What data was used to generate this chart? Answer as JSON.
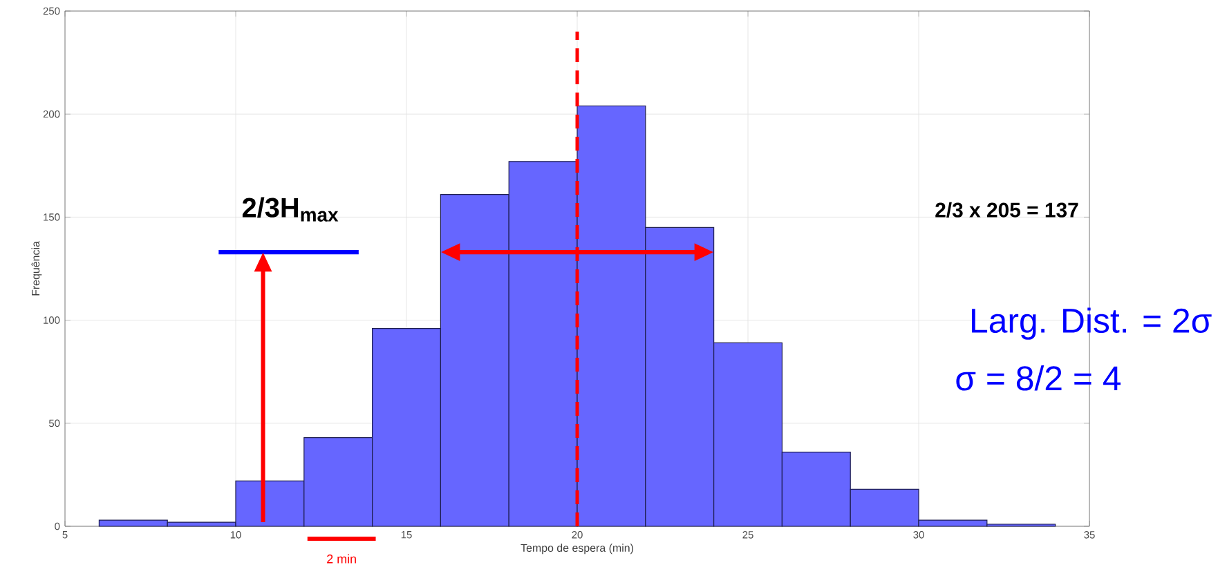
{
  "chart_data": {
    "type": "histogram",
    "xlabel": "Tempo de espera (min)",
    "ylabel": "Frequência",
    "bins": [
      6,
      8,
      10,
      12,
      14,
      16,
      18,
      20,
      22,
      24,
      26,
      28,
      30,
      32,
      34
    ],
    "values": [
      3,
      2,
      22,
      43,
      96,
      161,
      177,
      204,
      145,
      89,
      36,
      18,
      3,
      1
    ],
    "color": "#6666ff",
    "xlim": [
      5,
      35
    ],
    "ylim": [
      0,
      250
    ],
    "xticks": [
      5,
      10,
      15,
      20,
      25,
      30,
      35
    ],
    "yticks": [
      0,
      50,
      100,
      150,
      200,
      250
    ],
    "grid": true,
    "ref_lines": [
      {
        "axis": "x",
        "value": 20,
        "color": "#ff0000",
        "line_style": "dashed"
      },
      {
        "axis": "y",
        "value": 133,
        "color": "#0000ff",
        "line_style": "solid"
      }
    ],
    "annotations": [
      "2/3H$_{max}$",
      "2/3 x 205 = 137",
      "Larg. Dist. = 2σ",
      "σ = 8/2 = 4",
      "2 min"
    ]
  }
}
